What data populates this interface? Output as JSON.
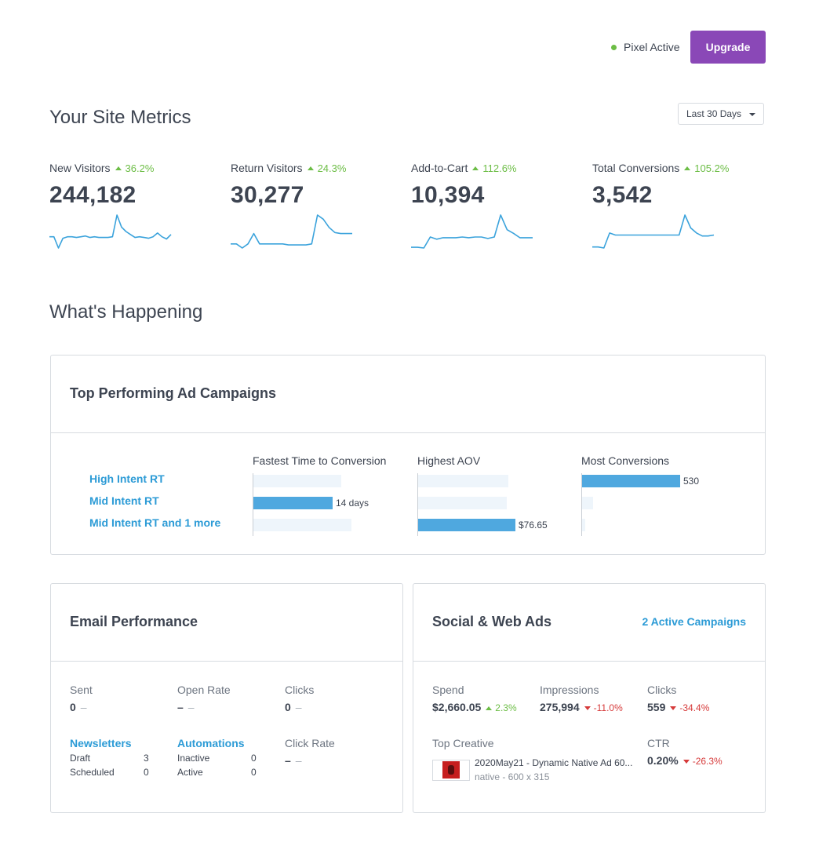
{
  "header": {
    "pixel_status": "Pixel Active",
    "upgrade_label": "Upgrade",
    "status_color": "#6cbd45",
    "brand_color": "#8a48b7"
  },
  "metrics_section": {
    "title": "Your Site Metrics",
    "range": "Last 30 Days",
    "metrics": [
      {
        "label": "New Visitors",
        "change": "36.2%",
        "value": "244,182"
      },
      {
        "label": "Return Visitors",
        "change": "24.3%",
        "value": "30,277"
      },
      {
        "label": "Add-to-Cart",
        "change": "112.6%",
        "value": "10,394"
      },
      {
        "label": "Total Conversions",
        "change": "105.2%",
        "value": "3,542"
      }
    ],
    "sparklines": [
      [
        15,
        15,
        0,
        13,
        15,
        15,
        14,
        15,
        16,
        14,
        15,
        14,
        14,
        14,
        15,
        44,
        28,
        22,
        18,
        14,
        15,
        14,
        13,
        15,
        20,
        15,
        12,
        18
      ],
      [
        4,
        4,
        0,
        4,
        14,
        4,
        4,
        4,
        4,
        4,
        3,
        3,
        3,
        3,
        4,
        32,
        28,
        20,
        15,
        14,
        14,
        14
      ],
      [
        1,
        1,
        0,
        15,
        12,
        14,
        14,
        14,
        15,
        14,
        15,
        15,
        13,
        15,
        45,
        25,
        20,
        14,
        14,
        14
      ],
      [
        1,
        1,
        0,
        15,
        13,
        13,
        13,
        13,
        13,
        13,
        13,
        13,
        13,
        13,
        13,
        13,
        33,
        20,
        15,
        12,
        12,
        13
      ]
    ]
  },
  "happening_section": {
    "title": "What's Happening"
  },
  "campaigns_card": {
    "title": "Top Performing Ad Campaigns",
    "campaigns": [
      "High Intent RT",
      "Mid Intent RT",
      "Mid Intent RT and 1 more"
    ],
    "columns": [
      {
        "title": "Fastest Time to Conversion",
        "highlight_row": 1,
        "highlight_label": "14 days"
      },
      {
        "title": "Highest AOV",
        "highlight_row": 2,
        "highlight_label": "$76.65"
      },
      {
        "title": "Most Conversions",
        "highlight_row": 0,
        "highlight_label": "530"
      }
    ]
  },
  "email_card": {
    "title": "Email Performance",
    "sent_label": "Sent",
    "sent_value": "0",
    "open_rate_label": "Open Rate",
    "open_rate_value": "–",
    "clicks_label": "Clicks",
    "clicks_value": "0",
    "click_rate_label": "Click Rate",
    "click_rate_value": "–",
    "dash": "–",
    "newsletters_label": "Newsletters",
    "newsletters": [
      {
        "label": "Draft",
        "count": "3"
      },
      {
        "label": "Scheduled",
        "count": "0"
      }
    ],
    "automations_label": "Automations",
    "automations": [
      {
        "label": "Inactive",
        "count": "0"
      },
      {
        "label": "Active",
        "count": "0"
      }
    ]
  },
  "social_card": {
    "title": "Social & Web Ads",
    "active_link": "2 Active Campaigns",
    "spend_label": "Spend",
    "spend_value": "$2,660.05",
    "spend_change": "2.3%",
    "impressions_label": "Impressions",
    "impressions_value": "275,994",
    "impressions_change": "-11.0%",
    "clicks_label": "Clicks",
    "clicks_value": "559",
    "clicks_change": "-34.4%",
    "top_creative_label": "Top Creative",
    "creative_name": "2020May21 - Dynamic Native Ad 60...",
    "creative_meta": "native - 600 x 315",
    "ctr_label": "CTR",
    "ctr_value": "0.20%",
    "ctr_change": "-26.3%"
  }
}
